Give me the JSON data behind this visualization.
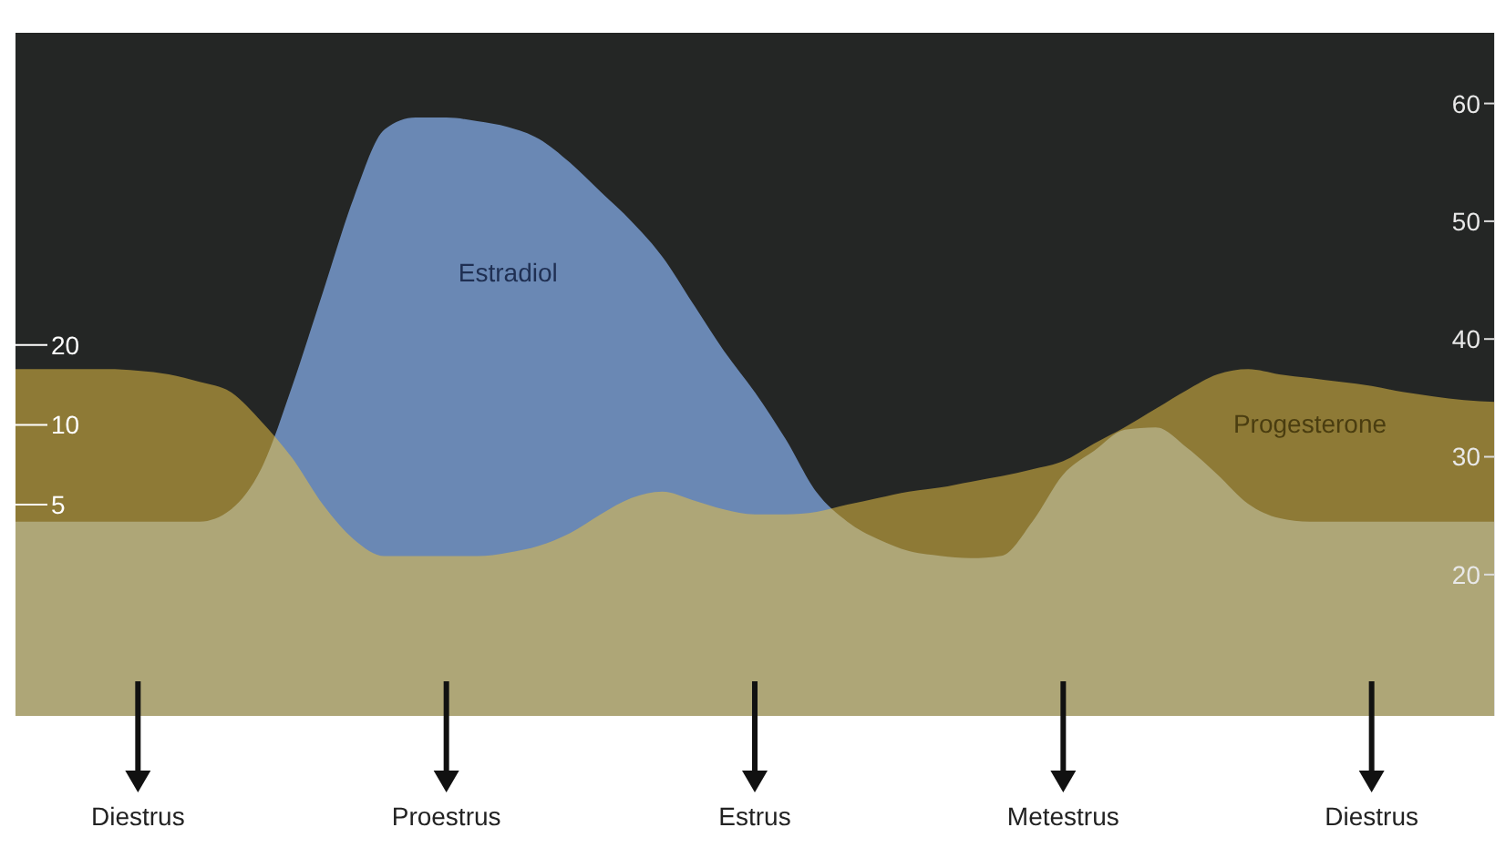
{
  "chart_data": {
    "type": "area",
    "categories": [
      null,
      null,
      null,
      null,
      "Diestrus",
      null,
      null,
      null,
      null,
      null,
      null,
      null,
      null,
      null,
      "Proestrus",
      null,
      null,
      null,
      null,
      null,
      null,
      null,
      null,
      null,
      "Estrus",
      null,
      null,
      null,
      null,
      null,
      null,
      null,
      null,
      null,
      "Metestrus",
      null,
      null,
      null,
      null,
      null,
      null,
      null,
      null,
      null,
      "Diestrus",
      null,
      null,
      null,
      null
    ],
    "series": [
      {
        "name": "Estradiol",
        "color": "#6a88b4",
        "axis": "y2",
        "values": [
          24.5,
          24.5,
          24.5,
          24.5,
          24.5,
          24.5,
          24.5,
          25.5,
          29,
          36,
          44,
          52,
          57.8,
          58.8,
          58.8,
          58.5,
          58,
          57,
          55,
          52.5,
          50,
          47,
          43,
          39,
          35.5,
          31.5,
          27,
          24.5,
          23,
          22,
          21.6,
          21.4,
          21.6,
          24.5,
          28.5,
          30.5,
          32.3,
          32.5,
          30.8,
          28.5,
          26,
          24.8,
          24.5,
          24.5,
          24.5,
          24.5,
          24.5,
          24.5,
          24.5
        ]
      },
      {
        "name": "Progesterone",
        "color": "#e6bf45",
        "values": [
          16.2,
          16.2,
          16.2,
          16.2,
          16,
          15.5,
          14.5,
          13.3,
          10.3,
          7.5,
          5,
          3.7,
          3.2,
          3.2,
          3.2,
          3.2,
          3.3,
          3.5,
          3.9,
          4.6,
          5.3,
          5.6,
          5.2,
          4.8,
          4.6,
          4.6,
          4.7,
          5,
          5.3,
          5.6,
          5.8,
          6.1,
          6.4,
          6.8,
          7.3,
          8.5,
          9.8,
          11.5,
          13.5,
          15.5,
          16.2,
          15.5,
          15,
          14.5,
          14,
          13.3,
          12.8,
          12.4,
          12.2
        ]
      }
    ],
    "log": "y",
    "ylim": [
      0.8,
      300
    ],
    "yticks": [
      5,
      10,
      20
    ],
    "y2lim": [
      8,
      66
    ],
    "y2ticks": [
      20,
      30,
      40,
      50,
      60
    ],
    "grid": false,
    "legend": false
  }
}
